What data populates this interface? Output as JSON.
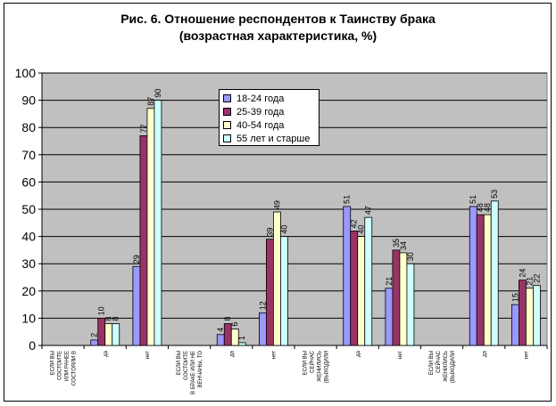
{
  "title_line1": "Рис. 6. Отношение респондентов к Таинству брака",
  "title_line2": "(возрастная характеристика, %)",
  "chart_data": {
    "type": "bar",
    "categories": [
      [
        "ЕСЛИ ВЫ",
        "СОСТОИТЕ",
        "ИЛИ РАНЕЕ",
        "СОСТОЯЛИ В"
      ],
      [
        "да"
      ],
      [
        "нет"
      ],
      [
        "ЕСЛИ ВЫ",
        "СОСТОИТЕ",
        "В БРАКЕ ИЛИ НЕ",
        "ВЕНЧАНЫ, ТО"
      ],
      [
        "да"
      ],
      [
        "нет"
      ],
      [
        "ЕСЛИ ВЫ",
        "СЕЙЧАС",
        "ЖЕНИЛИСЬ",
        "(ВЫХОДИЛИ"
      ],
      [
        "да"
      ],
      [
        "нет"
      ],
      [
        "ЕСЛИ ВЫ",
        "СЕЙЧАС",
        "ЖЕНИЛИСЬ",
        "(ВЫХОДИЛИ"
      ],
      [
        "да"
      ],
      [
        "нет"
      ]
    ],
    "series": [
      {
        "name": "18-24 года",
        "color": "#9999ff",
        "values": [
          null,
          2,
          29,
          null,
          4,
          12,
          null,
          51,
          21,
          null,
          51,
          15
        ]
      },
      {
        "name": "25-39 года",
        "color": "#993366",
        "values": [
          null,
          10,
          77,
          null,
          8,
          39,
          null,
          42,
          35,
          null,
          48,
          24
        ]
      },
      {
        "name": "40-54 года",
        "color": "#ffffcc",
        "values": [
          null,
          8,
          87,
          null,
          6,
          49,
          null,
          40,
          34,
          null,
          48,
          21
        ]
      },
      {
        "name": "55 лет и старше",
        "color": "#ccffff",
        "values": [
          null,
          8,
          90,
          null,
          1,
          40,
          null,
          47,
          30,
          null,
          53,
          22
        ]
      }
    ],
    "ylim": [
      0,
      100
    ],
    "yticks": [
      0,
      10,
      20,
      30,
      40,
      50,
      60,
      70,
      80,
      90,
      100
    ],
    "grid": true,
    "plot_background": "#c0c0c0",
    "legend_position": "top-center"
  }
}
